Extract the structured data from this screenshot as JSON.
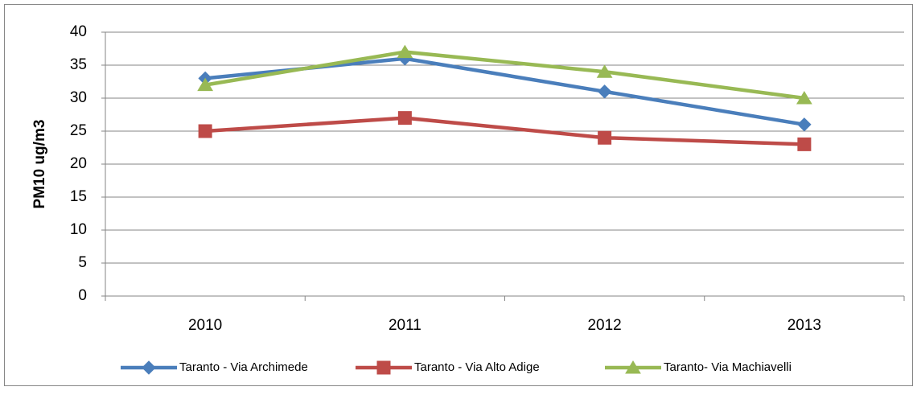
{
  "chart_data": {
    "type": "line",
    "y_label": "PM10 ug/m3",
    "categories": [
      "2010",
      "2011",
      "2012",
      "2013"
    ],
    "series": [
      {
        "name": "Taranto - Via Archimede",
        "color": "#4a7ebb",
        "marker": "diamond",
        "values": [
          33,
          36,
          31,
          26
        ]
      },
      {
        "name": "Taranto - Via Alto Adige",
        "color": "#be4b48",
        "marker": "square",
        "values": [
          25,
          27,
          24,
          23
        ]
      },
      {
        "name": "Taranto- Via Machiavelli",
        "color": "#98b954",
        "marker": "triangle",
        "values": [
          32,
          37,
          34,
          30
        ]
      }
    ],
    "ylim": [
      0,
      40
    ],
    "yticks": [
      0,
      5,
      10,
      15,
      20,
      25,
      30,
      35,
      40
    ],
    "grid": true,
    "legend": "bottom"
  }
}
